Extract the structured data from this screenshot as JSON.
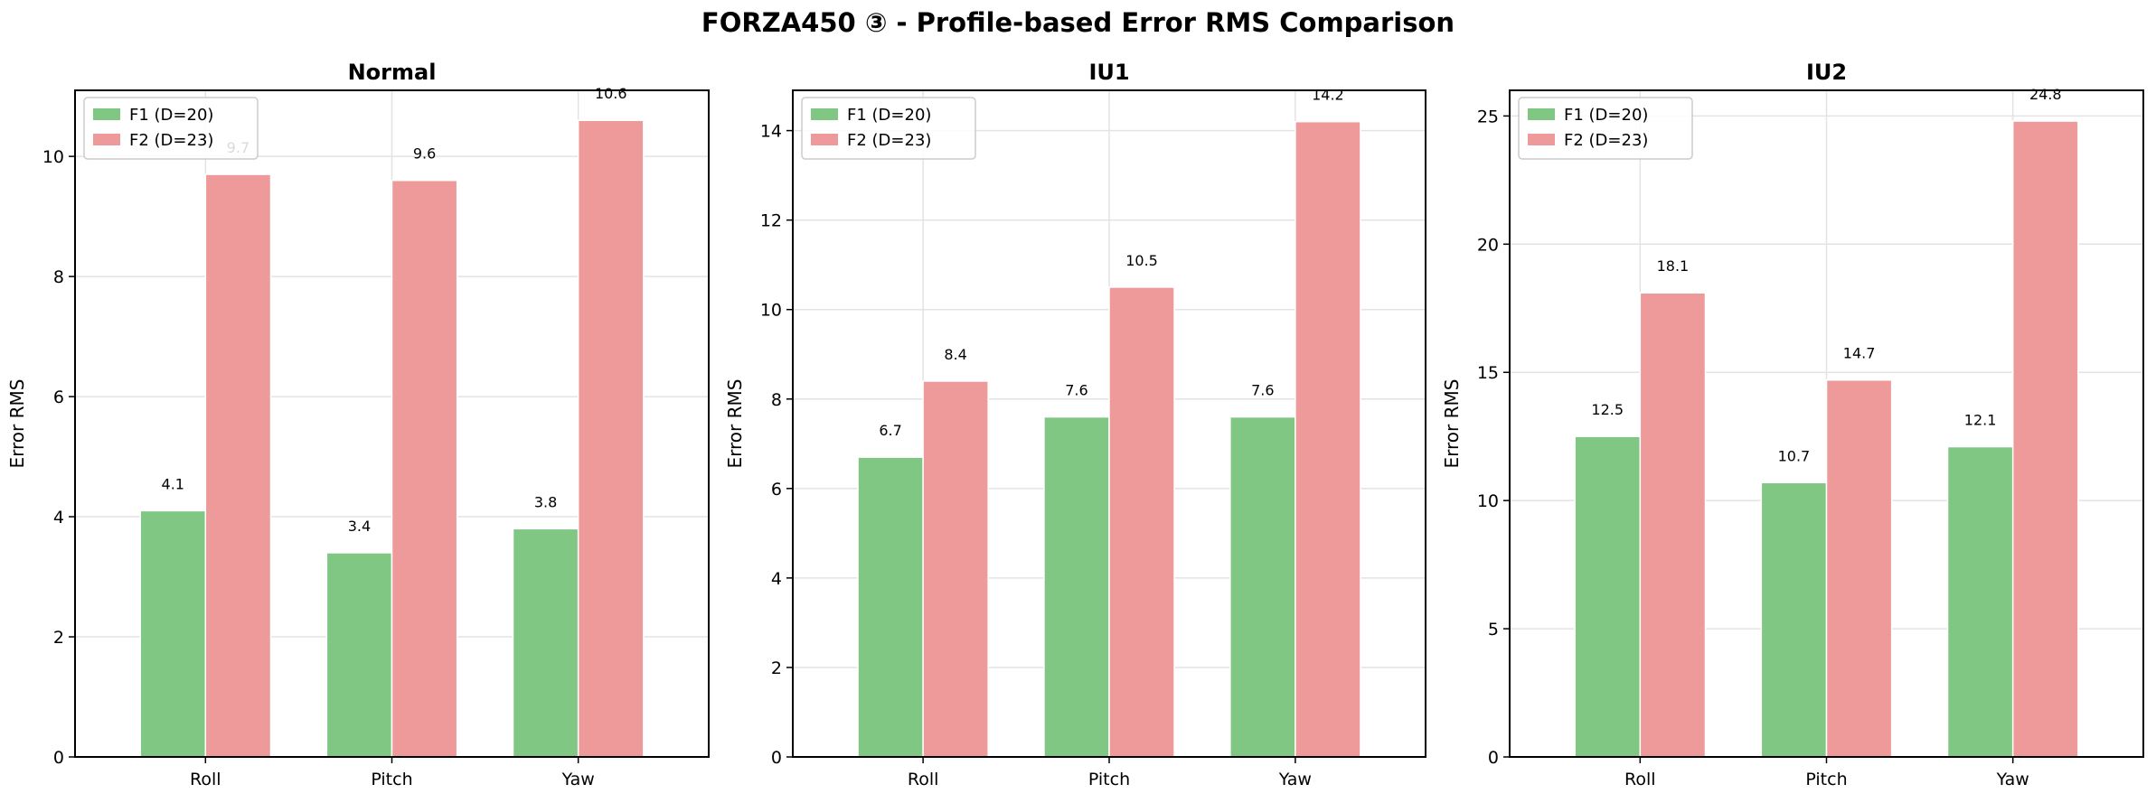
{
  "title": "FORZA450 ③ - Profile-based Error RMS Comparison",
  "legend": {
    "placement": "top-left",
    "items": [
      "F1 (D=20)",
      "F2 (D=23)"
    ]
  },
  "colors": {
    "F1": "#81c784",
    "F2": "#ef9a9a"
  },
  "chart_data": [
    {
      "type": "bar",
      "title": "Normal",
      "ylabel": "Error RMS",
      "categories": [
        "Roll",
        "Pitch",
        "Yaw"
      ],
      "series": [
        {
          "name": "F1 (D=20)",
          "values": [
            4.1,
            3.4,
            3.8
          ]
        },
        {
          "name": "F2 (D=23)",
          "values": [
            9.7,
            9.6,
            10.6
          ]
        }
      ],
      "data_labels": [
        [
          "4.1",
          "3.4",
          "3.8"
        ],
        [
          "9.7",
          "9.6",
          "10.6"
        ]
      ],
      "ylim": [
        0,
        11.1
      ],
      "yticks": [
        0,
        2,
        4,
        6,
        8,
        10
      ],
      "grid": true
    },
    {
      "type": "bar",
      "title": "IU1",
      "ylabel": "Error RMS",
      "categories": [
        "Roll",
        "Pitch",
        "Yaw"
      ],
      "series": [
        {
          "name": "F1 (D=20)",
          "values": [
            6.7,
            7.6,
            7.6
          ]
        },
        {
          "name": "F2 (D=23)",
          "values": [
            8.4,
            10.5,
            14.2
          ]
        }
      ],
      "data_labels": [
        [
          "6.7",
          "7.6",
          "7.6"
        ],
        [
          "8.4",
          "10.5",
          "14.2"
        ]
      ],
      "ylim": [
        0,
        14.9
      ],
      "yticks": [
        0,
        2,
        4,
        6,
        8,
        10,
        12,
        14
      ],
      "grid": true
    },
    {
      "type": "bar",
      "title": "IU2",
      "ylabel": "Error RMS",
      "categories": [
        "Roll",
        "Pitch",
        "Yaw"
      ],
      "series": [
        {
          "name": "F1 (D=20)",
          "values": [
            12.5,
            10.7,
            12.1
          ]
        },
        {
          "name": "F2 (D=23)",
          "values": [
            18.1,
            14.7,
            24.8
          ]
        }
      ],
      "data_labels": [
        [
          "12.5",
          "10.7",
          "12.1"
        ],
        [
          "18.1",
          "14.7",
          "24.8"
        ]
      ],
      "ylim": [
        0,
        26.0
      ],
      "yticks": [
        0,
        5,
        10,
        15,
        20,
        25
      ],
      "grid": true
    }
  ]
}
